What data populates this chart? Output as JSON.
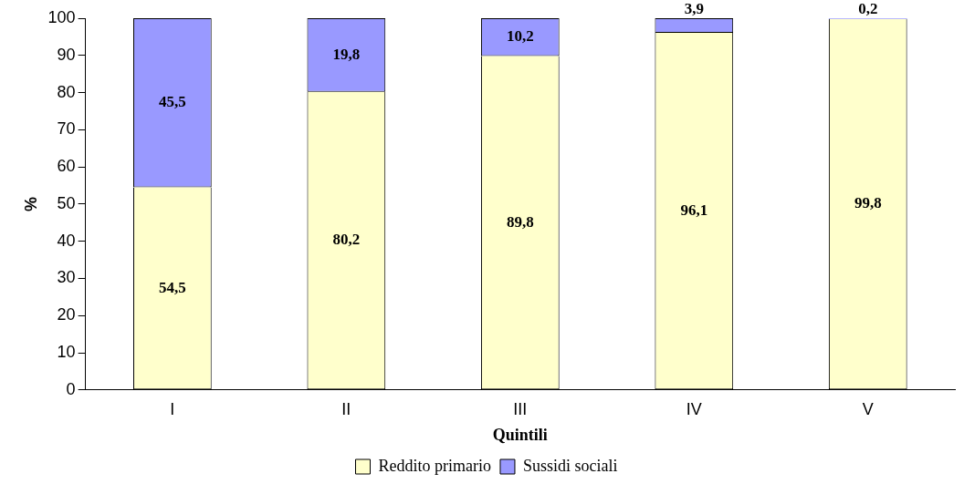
{
  "chart_data": {
    "type": "bar",
    "stacked": true,
    "xlabel": "Quintili",
    "ylabel": "%",
    "categories": [
      "I",
      "II",
      "III",
      "IV",
      "V"
    ],
    "series": [
      {
        "name": "Reddito primario",
        "color": "#ffffcc",
        "values": [
          54.5,
          80.2,
          89.8,
          96.1,
          99.8
        ],
        "value_labels": [
          "54,5",
          "80,2",
          "89,8",
          "96,1",
          "99,8"
        ]
      },
      {
        "name": "Sussidi sociali",
        "color": "#9999ff",
        "values": [
          45.5,
          19.8,
          10.2,
          3.9,
          0.2
        ],
        "value_labels": [
          "45,5",
          "19,8",
          "10,2",
          "3,9",
          "0,2"
        ]
      }
    ],
    "ylim": [
      0,
      100
    ],
    "yticks": [
      0,
      10,
      20,
      30,
      40,
      50,
      60,
      70,
      80,
      90,
      100
    ],
    "grid": false,
    "legend": "bottom"
  }
}
